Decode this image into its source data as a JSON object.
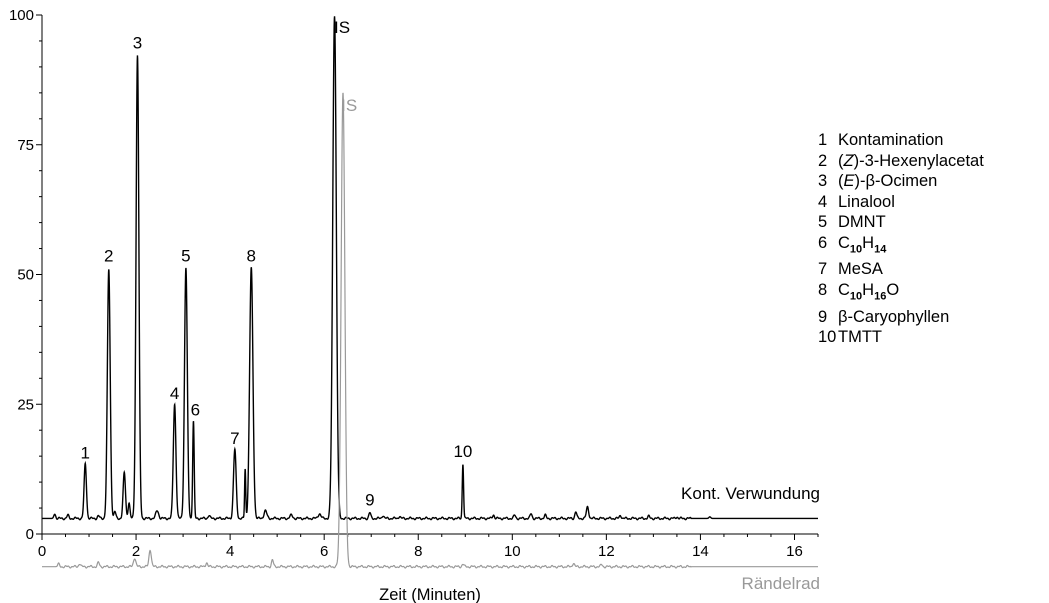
{
  "chart_data": {
    "type": "line",
    "xlabel": "Zeit (Minuten)",
    "xlim": [
      0,
      16.5
    ],
    "ylim": [
      0,
      100
    ],
    "x_ticks": [
      0,
      2,
      4,
      6,
      8,
      10,
      12,
      14,
      16
    ],
    "y_ticks": [
      0,
      25,
      50,
      75,
      100
    ],
    "grid": false,
    "series": [
      {
        "name": "Kont. Verwundung",
        "color": "#000000",
        "baseline": 3,
        "peaks": [
          {
            "x": 0.27,
            "y": 3.8,
            "w": 0.02
          },
          {
            "x": 0.55,
            "y": 3.6,
            "w": 0.02
          },
          {
            "x": 0.92,
            "y": 13.5,
            "w": 0.025
          },
          {
            "x": 1.2,
            "y": 3.5,
            "w": 0.02
          },
          {
            "x": 1.42,
            "y": 51,
            "w": 0.03
          },
          {
            "x": 1.55,
            "y": 4.3,
            "w": 0.02
          },
          {
            "x": 1.75,
            "y": 11.8,
            "w": 0.025
          },
          {
            "x": 1.85,
            "y": 6,
            "w": 0.02
          },
          {
            "x": 2.03,
            "y": 92.3,
            "w": 0.03
          },
          {
            "x": 2.45,
            "y": 4.5,
            "w": 0.03
          },
          {
            "x": 2.82,
            "y": 25,
            "w": 0.028
          },
          {
            "x": 3.06,
            "y": 51.3,
            "w": 0.03
          },
          {
            "x": 3.22,
            "y": 21.8,
            "w": 0.016
          },
          {
            "x": 3.55,
            "y": 3.6,
            "w": 0.02
          },
          {
            "x": 4.1,
            "y": 16.3,
            "w": 0.028
          },
          {
            "x": 4.32,
            "y": 12.5,
            "w": 0.012
          },
          {
            "x": 4.45,
            "y": 51.3,
            "w": 0.035
          },
          {
            "x": 4.75,
            "y": 4.5,
            "w": 0.03
          },
          {
            "x": 5.3,
            "y": 3.6,
            "w": 0.03
          },
          {
            "x": 5.9,
            "y": 3.9,
            "w": 0.03
          },
          {
            "x": 6.22,
            "y": 100,
            "w": 0.038
          },
          {
            "x": 6.97,
            "y": 4.1,
            "w": 0.02
          },
          {
            "x": 7.25,
            "y": 3.6,
            "w": 0.02
          },
          {
            "x": 7.6,
            "y": 3.4,
            "w": 0.02
          },
          {
            "x": 8.95,
            "y": 13.6,
            "w": 0.014
          },
          {
            "x": 9.6,
            "y": 3.7,
            "w": 0.02
          },
          {
            "x": 10.05,
            "y": 3.6,
            "w": 0.02
          },
          {
            "x": 10.4,
            "y": 3.9,
            "w": 0.02
          },
          {
            "x": 10.7,
            "y": 3.6,
            "w": 0.02
          },
          {
            "x": 11.35,
            "y": 4.3,
            "w": 0.02
          },
          {
            "x": 11.6,
            "y": 5.2,
            "w": 0.025
          },
          {
            "x": 12.3,
            "y": 3.6,
            "w": 0.02
          },
          {
            "x": 12.9,
            "y": 3.4,
            "w": 0.02
          },
          {
            "x": 13.5,
            "y": 3.3,
            "w": 0.02
          },
          {
            "x": 14.2,
            "y": 3.3,
            "w": 0.02
          }
        ]
      },
      {
        "name": "Rändelrad",
        "color": "#999999",
        "baseline": -6.3,
        "peaks": [
          {
            "x": 0.35,
            "y": -5.8,
            "w": 0.02
          },
          {
            "x": 0.8,
            "y": -5.7,
            "w": 0.02
          },
          {
            "x": 1.2,
            "y": -5.5,
            "w": 0.02
          },
          {
            "x": 1.97,
            "y": -4.6,
            "w": 0.025
          },
          {
            "x": 2.3,
            "y": -3,
            "w": 0.025
          },
          {
            "x": 3.5,
            "y": -5.5,
            "w": 0.02
          },
          {
            "x": 4.9,
            "y": -5,
            "w": 0.02
          },
          {
            "x": 6.4,
            "y": 85,
            "w": 0.04
          },
          {
            "x": 8.95,
            "y": -5.8,
            "w": 0.02
          },
          {
            "x": 11.3,
            "y": -5.6,
            "w": 0.02
          },
          {
            "x": 11.9,
            "y": -5.9,
            "w": 0.02
          }
        ]
      }
    ],
    "peak_labels": [
      {
        "text": "1",
        "x": 0.92,
        "y": 14.5
      },
      {
        "text": "2",
        "x": 1.42,
        "y": 52.5
      },
      {
        "text": "3",
        "x": 2.03,
        "y": 93.5
      },
      {
        "text": "4",
        "x": 2.82,
        "y": 26
      },
      {
        "text": "5",
        "x": 3.06,
        "y": 52.5
      },
      {
        "text": "6",
        "x": 3.26,
        "y": 22.8
      },
      {
        "text": "7",
        "x": 4.1,
        "y": 17.3
      },
      {
        "text": "8",
        "x": 4.45,
        "y": 52.5
      },
      {
        "text": "9",
        "x": 6.97,
        "y": 5.5
      },
      {
        "text": "10",
        "x": 8.95,
        "y": 14.8
      },
      {
        "text": "IS",
        "x": 6.55,
        "y": 96.5,
        "color": "#000000"
      },
      {
        "text": "IS",
        "x": 6.7,
        "y": 81.5,
        "color": "#999999"
      }
    ],
    "series_labels": [
      {
        "text": "Kont. Verwundung",
        "series": 0
      },
      {
        "text": "Rändelrad",
        "series": 1
      }
    ]
  },
  "legend": [
    {
      "num": "1",
      "name": "Kontamination"
    },
    {
      "num": "2",
      "name": "(Z)-3-Hexenylacetat"
    },
    {
      "num": "3",
      "name": "(E)-β-Ocimen"
    },
    {
      "num": "4",
      "name": "Linalool"
    },
    {
      "num": "5",
      "name": "DMNT"
    },
    {
      "num": "6",
      "name": "C10H14"
    },
    {
      "num": "7",
      "name": "MeSA"
    },
    {
      "num": "8",
      "name": "C10H16O"
    },
    {
      "num": "9",
      "name": "β-Caryophyllen"
    },
    {
      "num": "10",
      "name": "TMTT"
    }
  ]
}
